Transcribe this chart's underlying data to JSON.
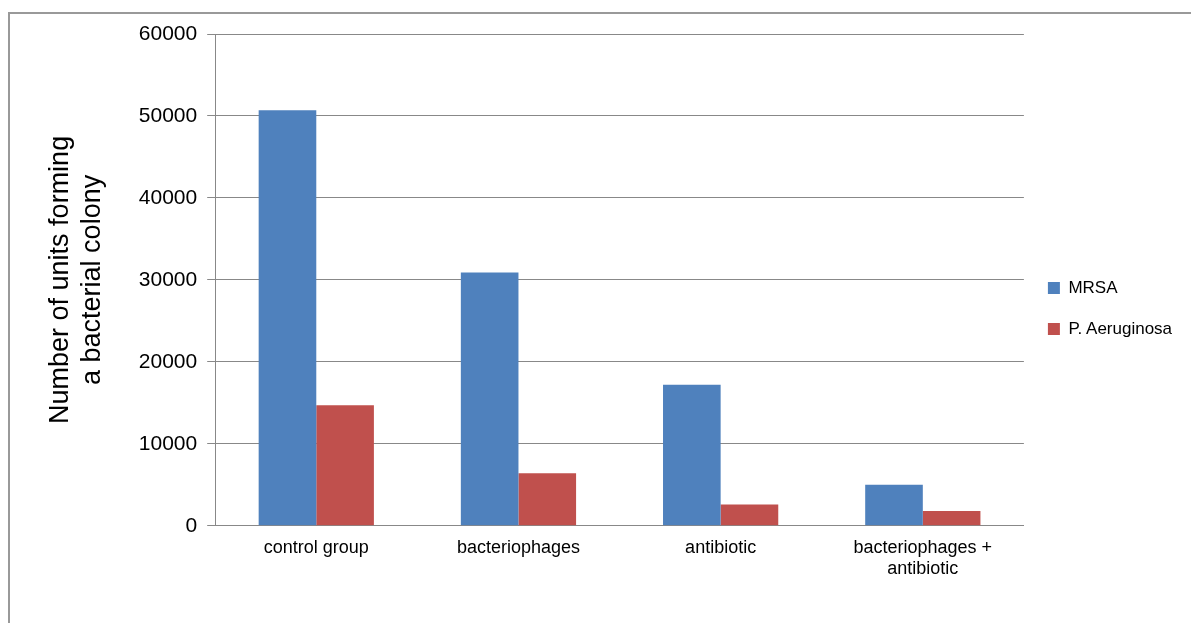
{
  "chart_data": {
    "type": "bar",
    "ylabel": "Number of units forming a bacterial colony",
    "categories": [
      "control group",
      "bacteriophages",
      "antibiotic",
      "bacteriophages + antibiotic"
    ],
    "series": [
      {
        "name": "MRSA",
        "color": "#4f81bd",
        "values": [
          50700,
          30900,
          17200,
          5000
        ]
      },
      {
        "name": "P. Aeruginosa",
        "color": "#c0504d",
        "values": [
          14700,
          6400,
          2600,
          1800
        ]
      }
    ],
    "ylim": [
      0,
      60000
    ],
    "yticks": [
      0,
      10000,
      20000,
      30000,
      40000,
      50000,
      60000
    ],
    "grid": "y",
    "legend": "right"
  }
}
